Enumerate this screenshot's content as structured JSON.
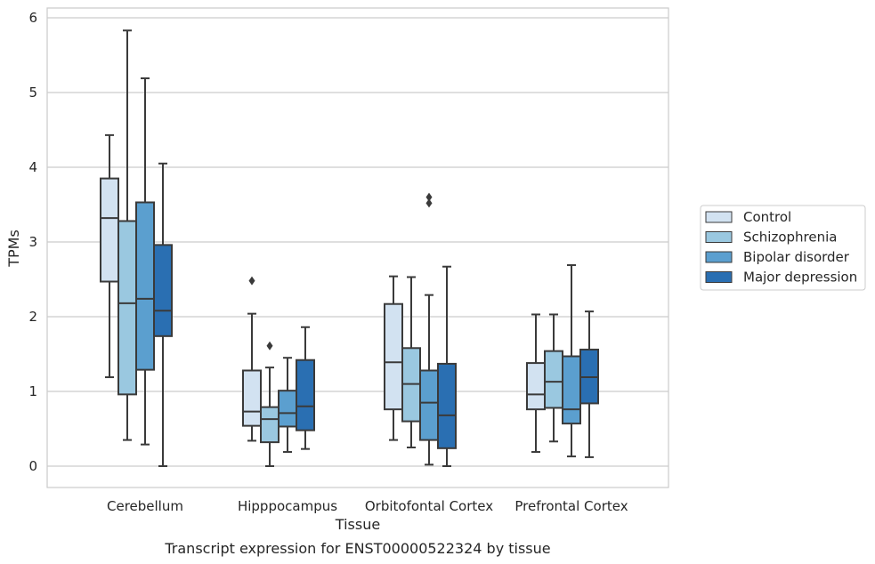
{
  "chart_data": {
    "type": "box",
    "title": "",
    "caption": "Transcript expression for ENST00000522324 by tissue",
    "xlabel": "Tissue",
    "ylabel": "TPMs",
    "ylim": [
      -0.28,
      6.13
    ],
    "yticks": [
      0,
      1,
      2,
      3,
      4,
      5,
      6
    ],
    "grid": true,
    "legend_position": "right",
    "categories": [
      "Cerebellum",
      "Hipppocampus",
      "Orbitofontal Cortex",
      "Prefrontal Cortex"
    ],
    "series": [
      {
        "name": "Control",
        "color": "#d2e2f1",
        "boxes": [
          {
            "whislo": 1.19,
            "q1": 2.47,
            "med": 3.32,
            "q3": 3.85,
            "whishi": 4.43,
            "fliers": []
          },
          {
            "whislo": 0.34,
            "q1": 0.54,
            "med": 0.73,
            "q3": 1.28,
            "whishi": 2.04,
            "fliers": [
              2.48
            ]
          },
          {
            "whislo": 0.35,
            "q1": 0.76,
            "med": 1.39,
            "q3": 2.17,
            "whishi": 2.54,
            "fliers": []
          },
          {
            "whislo": 0.19,
            "q1": 0.76,
            "med": 0.96,
            "q3": 1.38,
            "whishi": 2.03,
            "fliers": []
          }
        ]
      },
      {
        "name": "Schizophrenia",
        "color": "#9ac8e0",
        "boxes": [
          {
            "whislo": 0.35,
            "q1": 0.96,
            "med": 2.18,
            "q3": 3.28,
            "whishi": 5.83,
            "fliers": []
          },
          {
            "whislo": 0.0,
            "q1": 0.32,
            "med": 0.63,
            "q3": 0.79,
            "whishi": 1.32,
            "fliers": [
              1.61
            ]
          },
          {
            "whislo": 0.25,
            "q1": 0.6,
            "med": 1.1,
            "q3": 1.58,
            "whishi": 2.53,
            "fliers": []
          },
          {
            "whislo": 0.33,
            "q1": 0.78,
            "med": 1.13,
            "q3": 1.54,
            "whishi": 2.03,
            "fliers": []
          }
        ]
      },
      {
        "name": "Bipolar disorder",
        "color": "#5b9fcf",
        "boxes": [
          {
            "whislo": 0.29,
            "q1": 1.29,
            "med": 2.24,
            "q3": 3.53,
            "whishi": 5.19,
            "fliers": []
          },
          {
            "whislo": 0.19,
            "q1": 0.53,
            "med": 0.71,
            "q3": 1.01,
            "whishi": 1.45,
            "fliers": []
          },
          {
            "whislo": 0.02,
            "q1": 0.35,
            "med": 0.85,
            "q3": 1.28,
            "whishi": 2.29,
            "fliers": [
              3.52,
              3.6
            ]
          },
          {
            "whislo": 0.13,
            "q1": 0.57,
            "med": 0.76,
            "q3": 1.47,
            "whishi": 2.69,
            "fliers": []
          }
        ]
      },
      {
        "name": "Major depression",
        "color": "#2a6fb2",
        "boxes": [
          {
            "whislo": 0.0,
            "q1": 1.74,
            "med": 2.08,
            "q3": 2.96,
            "whishi": 4.05,
            "fliers": []
          },
          {
            "whislo": 0.23,
            "q1": 0.48,
            "med": 0.8,
            "q3": 1.42,
            "whishi": 1.86,
            "fliers": []
          },
          {
            "whislo": 0.0,
            "q1": 0.24,
            "med": 0.68,
            "q3": 1.37,
            "whishi": 2.67,
            "fliers": []
          },
          {
            "whislo": 0.12,
            "q1": 0.84,
            "med": 1.19,
            "q3": 1.56,
            "whishi": 2.07,
            "fliers": []
          }
        ]
      }
    ]
  }
}
